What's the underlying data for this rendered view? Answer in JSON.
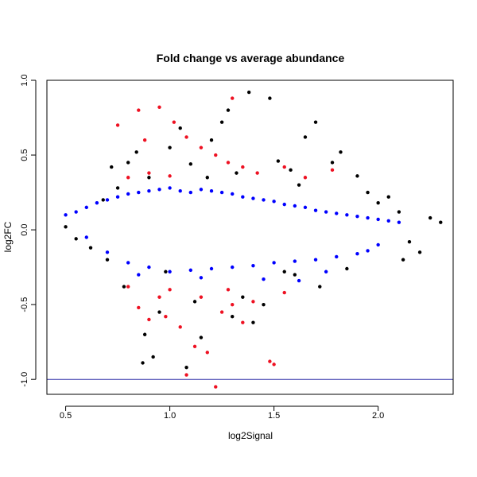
{
  "chart_data": {
    "type": "scatter",
    "title": "Fold change vs average abundance",
    "xlabel": "log2Signal",
    "ylabel": "log2FC",
    "xlim": [
      0.41,
      2.36
    ],
    "ylim": [
      -1.1,
      1.0
    ],
    "x_ticks": [
      0.5,
      1.0,
      1.5,
      2.0
    ],
    "x_tick_labels": [
      "0.5",
      "1.0",
      "1.5",
      "2.0"
    ],
    "y_ticks": [
      -1.0,
      -0.5,
      0.0,
      0.5,
      1.0
    ],
    "y_tick_labels": [
      "-1.0",
      "-0.5",
      "0.0",
      "0.5",
      "1.0"
    ],
    "reference_lines": [
      {
        "y": 1.0,
        "color": "#3333aa"
      },
      {
        "y": -1.0,
        "color": "#3333aa"
      }
    ],
    "grid": false,
    "legend": "none",
    "series": [
      {
        "color": "#000000",
        "points": [
          [
            0.5,
            0.02
          ],
          [
            0.55,
            -0.06
          ],
          [
            0.62,
            -0.12
          ],
          [
            0.7,
            -0.2
          ],
          [
            0.68,
            0.2
          ],
          [
            0.75,
            0.28
          ],
          [
            0.8,
            0.45
          ],
          [
            0.84,
            0.52
          ],
          [
            0.9,
            0.35
          ],
          [
            0.95,
            -0.55
          ],
          [
            0.88,
            -0.7
          ],
          [
            0.92,
            -0.85
          ],
          [
            0.87,
            -0.89
          ],
          [
            1.0,
            0.55
          ],
          [
            1.05,
            0.68
          ],
          [
            1.1,
            0.44
          ],
          [
            1.12,
            -0.48
          ],
          [
            1.15,
            -0.72
          ],
          [
            1.08,
            -0.92
          ],
          [
            1.2,
            0.6
          ],
          [
            1.25,
            0.72
          ],
          [
            1.28,
            0.8
          ],
          [
            1.32,
            0.38
          ],
          [
            1.35,
            -0.45
          ],
          [
            1.4,
            -0.62
          ],
          [
            1.45,
            -0.5
          ],
          [
            1.48,
            0.88
          ],
          [
            1.52,
            0.46
          ],
          [
            1.58,
            0.4
          ],
          [
            1.62,
            0.3
          ],
          [
            1.7,
            0.72
          ],
          [
            1.72,
            -0.38
          ],
          [
            1.78,
            0.45
          ],
          [
            1.82,
            0.52
          ],
          [
            1.9,
            0.36
          ],
          [
            1.95,
            0.25
          ],
          [
            2.0,
            0.18
          ],
          [
            2.05,
            0.22
          ],
          [
            2.1,
            0.12
          ],
          [
            2.15,
            -0.08
          ],
          [
            2.2,
            -0.15
          ],
          [
            2.25,
            0.08
          ],
          [
            2.3,
            0.05
          ],
          [
            1.6,
            -0.3
          ],
          [
            1.85,
            -0.26
          ],
          [
            2.12,
            -0.2
          ],
          [
            0.78,
            -0.38
          ],
          [
            1.65,
            0.62
          ],
          [
            1.38,
            0.92
          ],
          [
            1.3,
            -0.58
          ],
          [
            1.18,
            0.35
          ],
          [
            0.72,
            0.42
          ],
          [
            0.98,
            -0.28
          ],
          [
            1.55,
            -0.28
          ]
        ]
      },
      {
        "color": "#0000ff",
        "points": [
          [
            0.5,
            0.1
          ],
          [
            0.55,
            0.12
          ],
          [
            0.6,
            0.15
          ],
          [
            0.65,
            0.18
          ],
          [
            0.7,
            0.2
          ],
          [
            0.75,
            0.22
          ],
          [
            0.8,
            0.24
          ],
          [
            0.85,
            0.25
          ],
          [
            0.9,
            0.26
          ],
          [
            0.95,
            0.27
          ],
          [
            1.0,
            0.28
          ],
          [
            1.05,
            0.26
          ],
          [
            1.1,
            0.25
          ],
          [
            1.15,
            0.27
          ],
          [
            1.2,
            0.26
          ],
          [
            1.25,
            0.25
          ],
          [
            1.3,
            0.24
          ],
          [
            1.35,
            0.22
          ],
          [
            1.4,
            0.21
          ],
          [
            1.45,
            0.2
          ],
          [
            1.5,
            0.19
          ],
          [
            1.55,
            0.17
          ],
          [
            1.6,
            0.16
          ],
          [
            1.65,
            0.15
          ],
          [
            1.7,
            0.13
          ],
          [
            1.75,
            0.12
          ],
          [
            1.8,
            0.11
          ],
          [
            1.85,
            0.1
          ],
          [
            1.9,
            0.09
          ],
          [
            1.95,
            0.08
          ],
          [
            2.0,
            0.07
          ],
          [
            2.05,
            0.06
          ],
          [
            2.1,
            0.05
          ],
          [
            0.6,
            -0.05
          ],
          [
            0.7,
            -0.15
          ],
          [
            0.8,
            -0.22
          ],
          [
            0.9,
            -0.25
          ],
          [
            1.0,
            -0.28
          ],
          [
            1.1,
            -0.27
          ],
          [
            1.2,
            -0.26
          ],
          [
            1.3,
            -0.25
          ],
          [
            1.4,
            -0.24
          ],
          [
            1.5,
            -0.22
          ],
          [
            1.6,
            -0.21
          ],
          [
            1.7,
            -0.2
          ],
          [
            1.8,
            -0.18
          ],
          [
            1.9,
            -0.16
          ],
          [
            2.0,
            -0.1
          ],
          [
            0.85,
            -0.3
          ],
          [
            1.15,
            -0.32
          ],
          [
            1.45,
            -0.33
          ],
          [
            1.75,
            -0.28
          ],
          [
            1.62,
            -0.34
          ],
          [
            1.95,
            -0.14
          ]
        ]
      },
      {
        "color": "#ee1122",
        "points": [
          [
            0.75,
            0.7
          ],
          [
            0.85,
            0.8
          ],
          [
            0.95,
            0.82
          ],
          [
            1.02,
            0.72
          ],
          [
            0.88,
            0.6
          ],
          [
            1.08,
            0.62
          ],
          [
            1.15,
            0.55
          ],
          [
            1.22,
            0.5
          ],
          [
            1.3,
            0.88
          ],
          [
            1.28,
            0.45
          ],
          [
            1.35,
            0.42
          ],
          [
            1.42,
            0.38
          ],
          [
            1.55,
            0.42
          ],
          [
            1.65,
            0.35
          ],
          [
            1.78,
            0.4
          ],
          [
            0.8,
            0.35
          ],
          [
            0.9,
            0.38
          ],
          [
            1.0,
            0.36
          ],
          [
            0.8,
            -0.38
          ],
          [
            0.85,
            -0.52
          ],
          [
            0.9,
            -0.6
          ],
          [
            0.95,
            -0.45
          ],
          [
            1.0,
            -0.4
          ],
          [
            1.05,
            -0.65
          ],
          [
            1.08,
            -0.97
          ],
          [
            1.12,
            -0.78
          ],
          [
            1.18,
            -0.82
          ],
          [
            1.22,
            -1.05
          ],
          [
            1.25,
            -0.55
          ],
          [
            1.3,
            -0.5
          ],
          [
            1.35,
            -0.62
          ],
          [
            1.4,
            -0.48
          ],
          [
            1.48,
            -0.88
          ],
          [
            1.5,
            -0.9
          ],
          [
            1.55,
            -0.42
          ],
          [
            1.28,
            -0.4
          ],
          [
            0.98,
            -0.58
          ],
          [
            1.15,
            -0.45
          ]
        ]
      }
    ]
  }
}
